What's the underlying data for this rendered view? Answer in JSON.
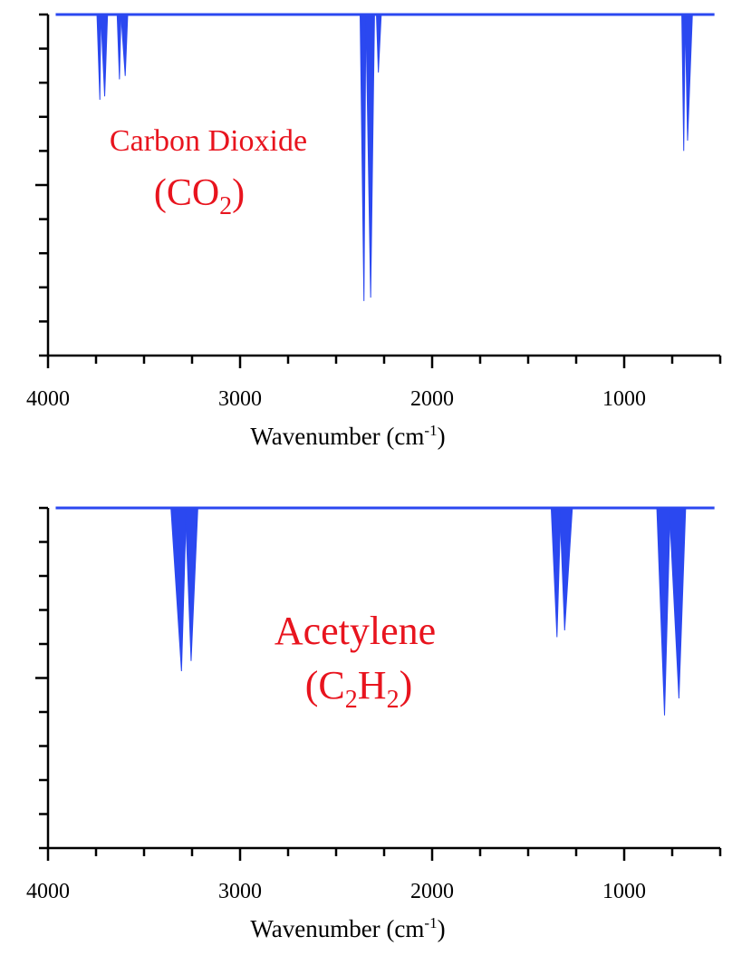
{
  "chart_data": [
    {
      "type": "area",
      "xlabel": "Wavenumber (cm",
      "xlabel_sup": "-1",
      "xlabel_end": ")",
      "xlim": [
        4000,
        500
      ],
      "ylim": [
        0,
        1
      ],
      "x_ticks": [
        "4000",
        "3000",
        "2000",
        "1000"
      ],
      "x_tick_values": [
        4000,
        3000,
        2000,
        1000
      ],
      "y_tick_labels_shown": false,
      "grid": false,
      "color": "#2b48f0",
      "annotation": {
        "line1": "Carbon Dioxide",
        "line2_pre": "(CO",
        "line2_sub": "2",
        "line2_post": ")"
      },
      "peaks": [
        {
          "x1": 3745,
          "x2": 3725,
          "xm": 3730,
          "depth": 0.25
        },
        {
          "x1": 3725,
          "x2": 3690,
          "xm": 3705,
          "depth": 0.24
        },
        {
          "x1": 3640,
          "x2": 3620,
          "xm": 3628,
          "depth": 0.19
        },
        {
          "x1": 3620,
          "x2": 3585,
          "xm": 3598,
          "depth": 0.18
        },
        {
          "x1": 2375,
          "x2": 2345,
          "xm": 2355,
          "depth": 0.84
        },
        {
          "x1": 2345,
          "x2": 2300,
          "xm": 2320,
          "depth": 0.83
        },
        {
          "x1": 2290,
          "x2": 2265,
          "xm": 2280,
          "depth": 0.17
        },
        {
          "x1": 700,
          "x2": 682,
          "xm": 690,
          "depth": 0.4
        },
        {
          "x1": 682,
          "x2": 645,
          "xm": 670,
          "depth": 0.37
        }
      ]
    },
    {
      "type": "area",
      "xlabel": "Wavenumber (cm",
      "xlabel_sup": "-1",
      "xlabel_end": ")",
      "xlim": [
        4000,
        500
      ],
      "ylim": [
        0,
        1
      ],
      "x_ticks": [
        "4000",
        "3000",
        "2000",
        "1000"
      ],
      "x_tick_values": [
        4000,
        3000,
        2000,
        1000
      ],
      "y_tick_labels_shown": false,
      "grid": false,
      "color": "#2b48f0",
      "annotation": {
        "line1": "Acetylene",
        "line2_pre": "(C",
        "line2_sub": "2",
        "line2_mid": "H",
        "line2_sub2": "2",
        "line2_post": ")"
      },
      "peaks": [
        {
          "x1": 3360,
          "x2": 3280,
          "xm": 3305,
          "depth": 0.48
        },
        {
          "x1": 3285,
          "x2": 3220,
          "xm": 3255,
          "depth": 0.45
        },
        {
          "x1": 1380,
          "x2": 1330,
          "xm": 1350,
          "depth": 0.38
        },
        {
          "x1": 1335,
          "x2": 1270,
          "xm": 1310,
          "depth": 0.36
        },
        {
          "x1": 830,
          "x2": 760,
          "xm": 790,
          "depth": 0.61
        },
        {
          "x1": 765,
          "x2": 680,
          "xm": 715,
          "depth": 0.56
        }
      ]
    }
  ]
}
